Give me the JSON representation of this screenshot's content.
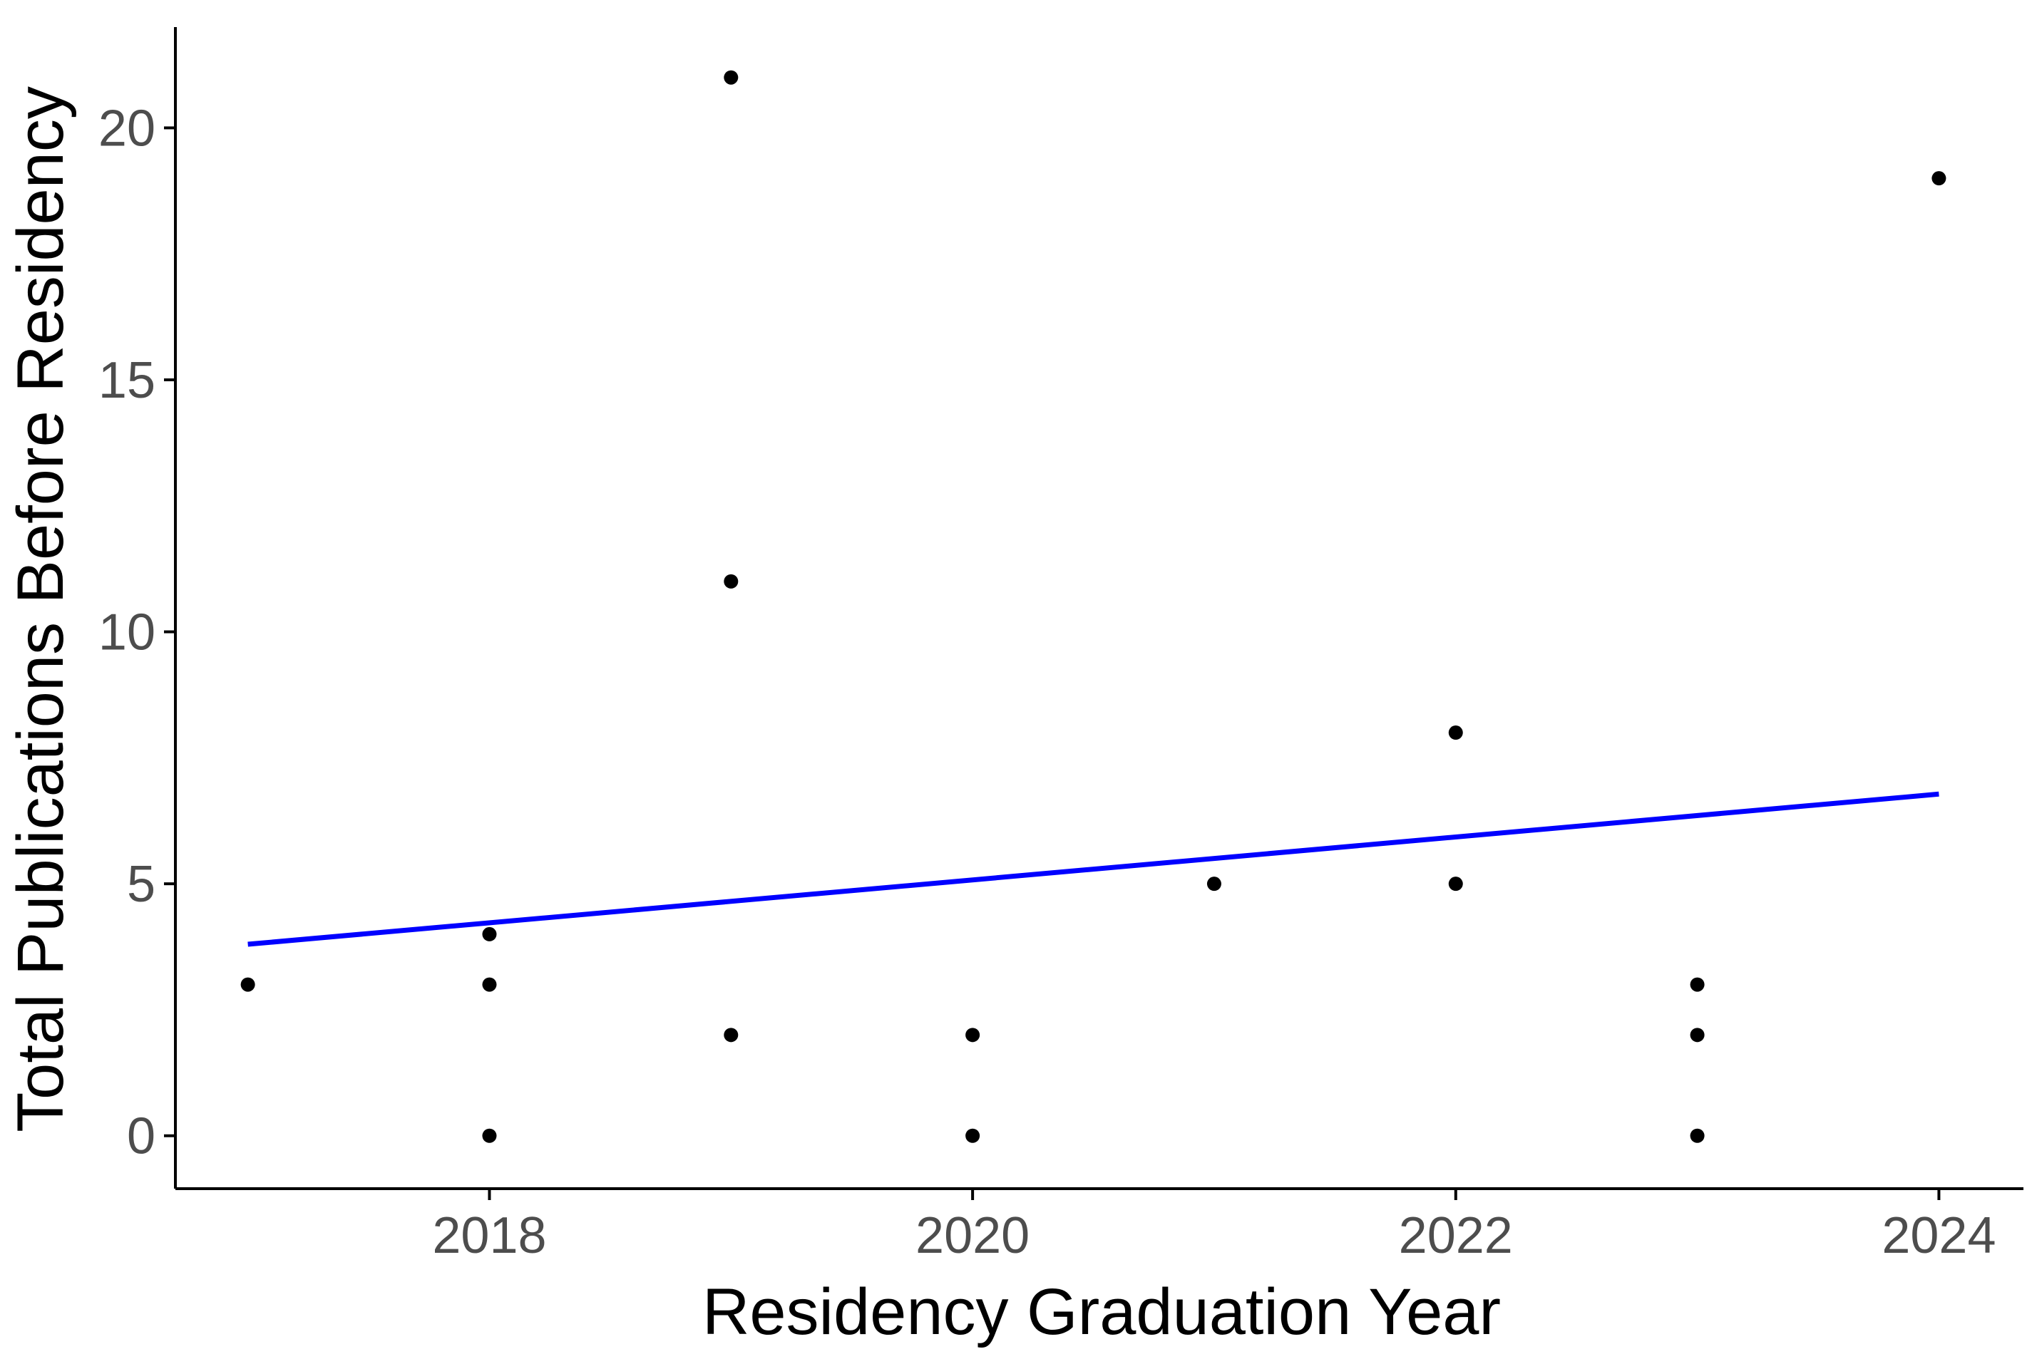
{
  "chart_data": {
    "type": "scatter",
    "title": "",
    "xlabel": "Residency Graduation Year",
    "ylabel": "Total Publications Before Residency",
    "xlim": [
      2016.7,
      2024.35
    ],
    "ylim": [
      -1.05,
      22
    ],
    "x_ticks": [
      2018,
      2020,
      2022,
      2024
    ],
    "y_ticks": [
      0,
      5,
      10,
      15,
      20
    ],
    "grid": false,
    "legend": "none",
    "points": [
      {
        "x": 2017,
        "y": 3
      },
      {
        "x": 2018,
        "y": 4
      },
      {
        "x": 2018,
        "y": 3
      },
      {
        "x": 2018,
        "y": 0
      },
      {
        "x": 2019,
        "y": 21
      },
      {
        "x": 2019,
        "y": 11
      },
      {
        "x": 2019,
        "y": 2
      },
      {
        "x": 2020,
        "y": 2
      },
      {
        "x": 2020,
        "y": 0
      },
      {
        "x": 2021,
        "y": 5
      },
      {
        "x": 2022,
        "y": 8
      },
      {
        "x": 2022,
        "y": 5
      },
      {
        "x": 2023,
        "y": 3
      },
      {
        "x": 2023,
        "y": 2
      },
      {
        "x": 2023,
        "y": 0
      },
      {
        "x": 2024,
        "y": 19
      }
    ],
    "trend_line": {
      "x": [
        2017,
        2024
      ],
      "y": [
        3.8,
        6.78
      ]
    },
    "colors": {
      "points": "#000000",
      "trend_line": "#0000ff",
      "axis": "#000000",
      "tick_label": "#4d4d4d"
    }
  }
}
